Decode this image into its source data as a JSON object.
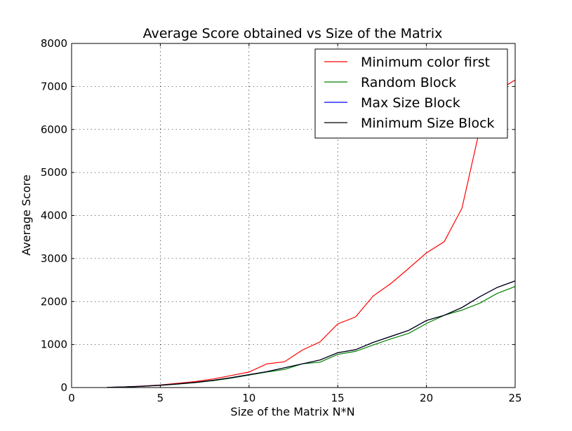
{
  "chart_data": {
    "type": "line",
    "title": "Average Score obtained vs Size of the Matrix",
    "xlabel": "Size of the Matrix N*N",
    "ylabel": "Average Score",
    "xlim": [
      0,
      25
    ],
    "ylim": [
      0,
      8000
    ],
    "xticks": [
      0,
      5,
      10,
      15,
      20,
      25
    ],
    "yticks": [
      0,
      1000,
      2000,
      3000,
      4000,
      5000,
      6000,
      7000,
      8000
    ],
    "grid": true,
    "legend_position": "top-right",
    "x": [
      2,
      3,
      4,
      5,
      6,
      7,
      8,
      9,
      10,
      11,
      12,
      13,
      14,
      15,
      16,
      17,
      18,
      19,
      20,
      21,
      22,
      23,
      24,
      25
    ],
    "series": [
      {
        "name": "Minimum color first",
        "color": "#ff0000",
        "values": [
          5,
          15,
          35,
          60,
          100,
          140,
          200,
          280,
          360,
          550,
          600,
          870,
          1060,
          1480,
          1640,
          2130,
          2420,
          2770,
          3130,
          3390,
          4170,
          6000,
          6900,
          7150
        ]
      },
      {
        "name": "Random Block",
        "color": "#008000",
        "values": [
          4,
          12,
          28,
          50,
          80,
          115,
          160,
          220,
          290,
          360,
          420,
          550,
          590,
          770,
          840,
          990,
          1130,
          1260,
          1490,
          1680,
          1800,
          1960,
          2190,
          2350
        ]
      },
      {
        "name": "Max Size Block",
        "color": "#0000ff",
        "values": [
          5,
          14,
          30,
          55,
          85,
          120,
          170,
          230,
          300,
          370,
          460,
          550,
          640,
          810,
          880,
          1050,
          1190,
          1330,
          1560,
          1680,
          1860,
          2110,
          2330,
          2480
        ]
      },
      {
        "name": "Minimum Size Block",
        "color": "#000000",
        "values": [
          5,
          14,
          30,
          55,
          85,
          120,
          170,
          230,
          300,
          370,
          460,
          550,
          640,
          810,
          880,
          1050,
          1190,
          1330,
          1560,
          1680,
          1860,
          2110,
          2330,
          2480
        ]
      }
    ]
  }
}
